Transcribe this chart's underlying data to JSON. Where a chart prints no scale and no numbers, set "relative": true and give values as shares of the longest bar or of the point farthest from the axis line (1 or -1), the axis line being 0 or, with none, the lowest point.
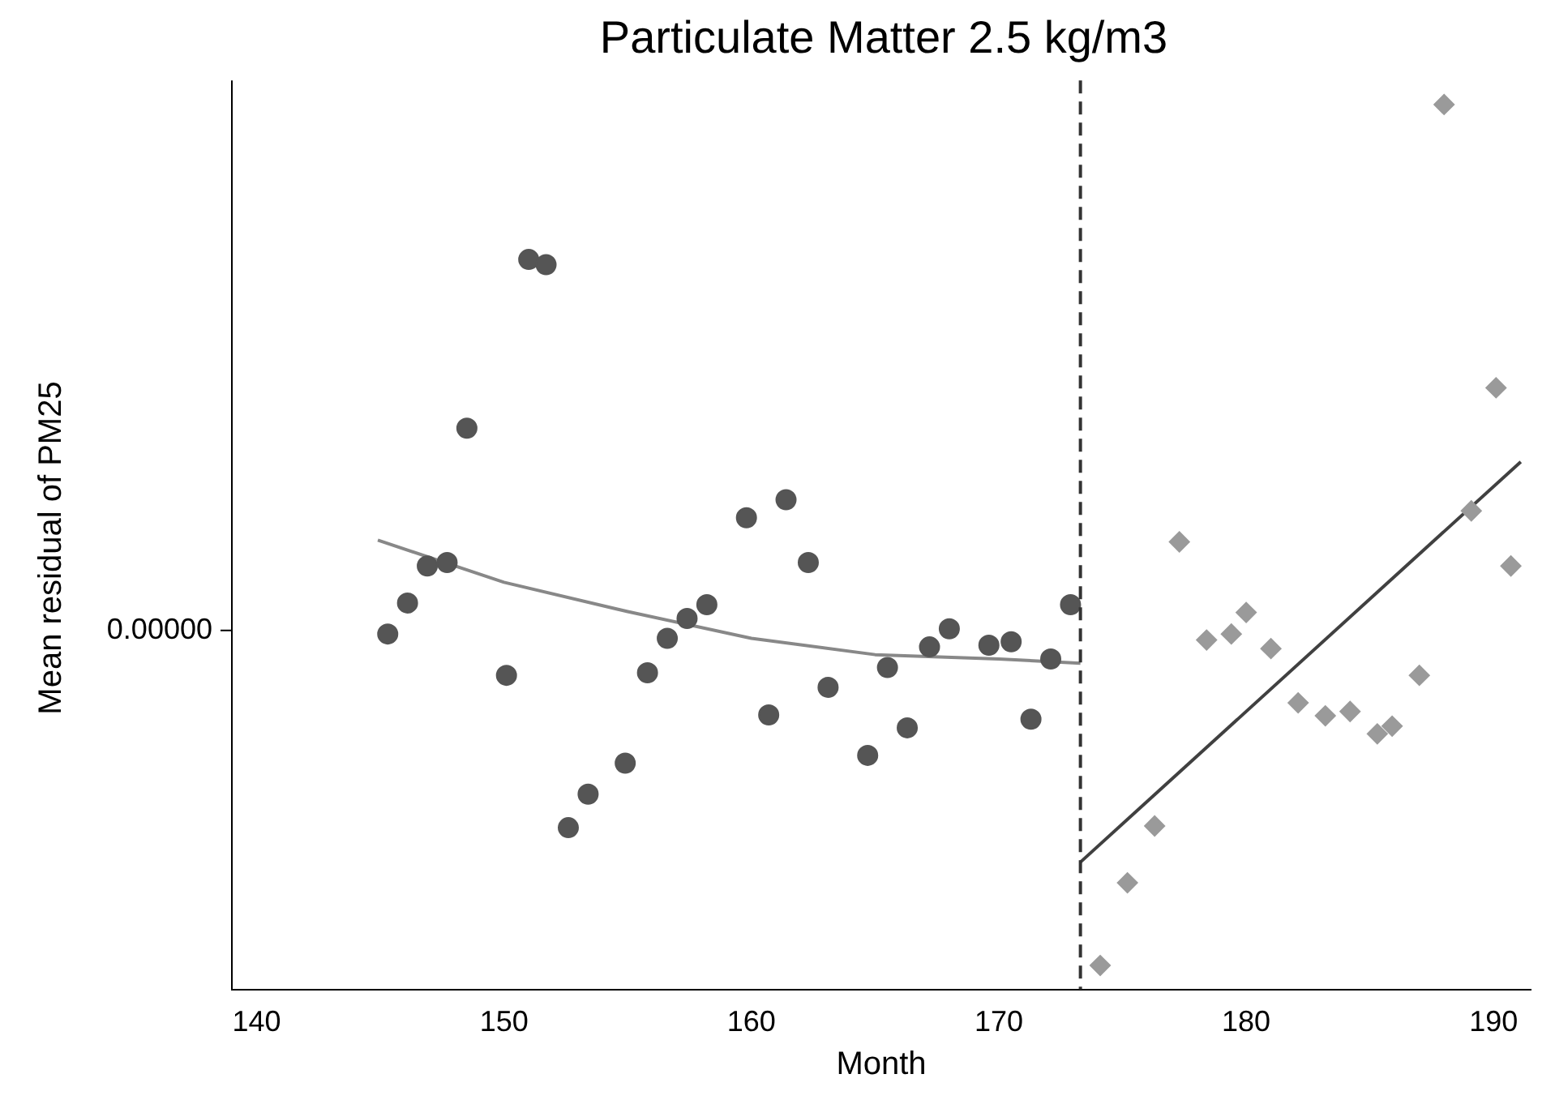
{
  "chart_data": {
    "type": "scatter",
    "title": "Particulate Matter 2.5 kg/m3",
    "xlabel": "Month",
    "ylabel": "Mean residual of PM25",
    "relative": true,
    "xlim": [
      139,
      191.5
    ],
    "xticks": [
      140,
      150,
      160,
      170,
      180,
      190
    ],
    "grid": false,
    "annotations": [
      "0.00000"
    ],
    "ref_lines": [
      {
        "axis": "x",
        "value": 173.3,
        "color": "#333333",
        "line_style": "dashed"
      }
    ],
    "series": [
      {
        "type": "scatter",
        "marker": "circle",
        "color": "#555555",
        "x": [
          145.3,
          146.1,
          146.9,
          147.7,
          148.5,
          150.1,
          151.0,
          151.7,
          152.6,
          153.4,
          154.9,
          155.8,
          156.6,
          157.4,
          158.2,
          159.8,
          160.7,
          161.4,
          162.3,
          163.1,
          164.7,
          165.5,
          166.3,
          167.2,
          168.0,
          169.6,
          170.5,
          171.3,
          172.1,
          172.9
        ],
        "values": [
          0.385,
          0.421,
          0.464,
          0.468,
          0.624,
          0.337,
          0.82,
          0.814,
          0.16,
          0.199,
          0.235,
          0.34,
          0.38,
          0.403,
          0.419,
          0.52,
          0.291,
          0.541,
          0.468,
          0.323,
          0.244,
          0.346,
          0.276,
          0.37,
          0.391,
          0.372,
          0.376,
          0.286,
          0.356,
          0.419
        ]
      },
      {
        "type": "scatter",
        "marker": "diamond",
        "color": "#9a9a9a",
        "x": [
          174.1,
          175.2,
          176.3,
          177.3,
          178.4,
          179.4,
          180.0,
          181.0,
          182.1,
          183.2,
          184.2,
          185.3,
          185.9,
          187.0,
          188.0,
          189.1,
          190.1,
          190.7
        ],
        "values": [
          0,
          0.096,
          0.162,
          0.492,
          0.378,
          0.385,
          0.41,
          0.368,
          0.305,
          0.29,
          0.295,
          0.269,
          0.278,
          0.337,
          1,
          0.528,
          0.671,
          0.464
        ]
      },
      {
        "type": "line",
        "marker": "none",
        "color": "#888888",
        "x": [
          144.9,
          150,
          155,
          160,
          165,
          170,
          173.3
        ],
        "values": [
          0.494,
          0.445,
          0.411,
          0.38,
          0.361,
          0.356,
          0.351
        ]
      },
      {
        "type": "line",
        "marker": "none",
        "color": "#404040",
        "x": [
          173.3,
          191.1
        ],
        "values": [
          0.12,
          0.585
        ]
      }
    ]
  }
}
